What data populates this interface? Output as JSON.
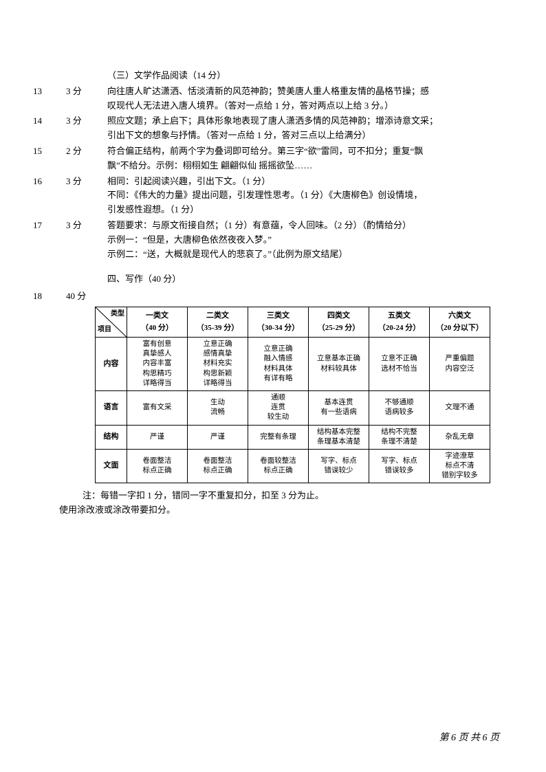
{
  "section3": {
    "title": "（三）文学作品阅读（14 分）"
  },
  "questions": [
    {
      "num": "13",
      "score": "3 分",
      "lines": [
        "向往唐人旷达潇洒、恬淡清新的风范神韵；赞美唐人重人格重友情的晶格节操；感",
        "叹现代人无法进入唐人境界。（答对一点给 1 分，答对两点以上给 3 分。）"
      ]
    },
    {
      "num": "14",
      "score": "3 分",
      "lines": [
        "照应文题；承上启下；具体形象地表现了唐人潇洒多情的风范神韵；增添诗意文采；",
        "引出下文的想象与抒情。（答对一点给 1 分，答对三点以上给满分）"
      ]
    },
    {
      "num": "15",
      "score": "2 分",
      "lines": [
        "符合偏正结构，前两个字为叠词即可给分。第三字“欲”雷同，可不扣分；重复“飘",
        "飘”不给分。示例：栩栩如生 翩翩似仙 摇摇欲坠……"
      ]
    },
    {
      "num": "16",
      "score": "3 分",
      "lines": [
        "相同：引起阅读兴趣，引出下文。（1 分）",
        "不同：《伟大的力量》提出问题，引发理性思考。（1 分）《大唐柳色》创设情境，",
        "引发感性遐想。（1 分）"
      ]
    },
    {
      "num": "17",
      "score": "3 分",
      "lines": [
        "答题要求：与原文衔接自然；（1 分）有意蕴，令人回味。（2 分）（酌情给分）",
        "示例一：“但是，大唐柳色依然夜夜入梦。”",
        "示例二：“送，大概就是现代人的悲哀了。”（此例为原文结尾）"
      ]
    }
  ],
  "section4": {
    "title": "四、写作（40 分）"
  },
  "q18": {
    "num": "18",
    "score": "40 分"
  },
  "table": {
    "diag_top": "类型",
    "diag_bottom": "项目",
    "columns": [
      {
        "name": "一类文",
        "range": "（40 分）"
      },
      {
        "name": "二类文",
        "range": "（35-39 分）"
      },
      {
        "name": "三类文",
        "range": "（30-34 分）"
      },
      {
        "name": "四类文",
        "range": "（25-29 分）"
      },
      {
        "name": "五类文",
        "range": "（20-24 分）"
      },
      {
        "name": "六类文",
        "range": "（20 分以下）"
      }
    ],
    "rows": [
      {
        "label": "内容",
        "cells": [
          "富有创意\n真挚感人\n内容丰富\n构思精巧\n详略得当",
          "立意正确\n感情真挚\n材料充实\n构思新颖\n详略得当",
          "立意正确\n融入情感\n材料具体\n有详有略",
          "立意基本正确\n材料较具体",
          "立意不正确\n选材不恰当",
          "严重偏题\n内容空泛"
        ]
      },
      {
        "label": "语言",
        "cells": [
          "富有文采",
          "生动\n流畅",
          "通顺\n连贯\n较生动",
          "基本连贯\n有一些语病",
          "不够通顺\n语病较多",
          "文理不通"
        ]
      },
      {
        "label": "结构",
        "cells": [
          "严谨",
          "严谨",
          "完整有条理",
          "结构基本完整\n条理基本清楚",
          "结构不完整\n条理不清楚",
          "杂乱无章"
        ]
      },
      {
        "label": "文面",
        "cells": [
          "卷面整洁\n标点正确",
          "卷面整洁\n标点正确",
          "卷面较整洁\n标点正确",
          "写字、标点\n错误较少",
          "写字、标点\n错误较多",
          "字迹潦草\n标点不清\n错别字较多"
        ]
      }
    ]
  },
  "notes": {
    "line1": "注：每错一字扣 1 分，错同一字不重复扣分，扣至 3 分为止。",
    "line2": "使用涂改液或涂改带要扣分。"
  },
  "footer": {
    "text": "第 6 页 共 6 页"
  }
}
